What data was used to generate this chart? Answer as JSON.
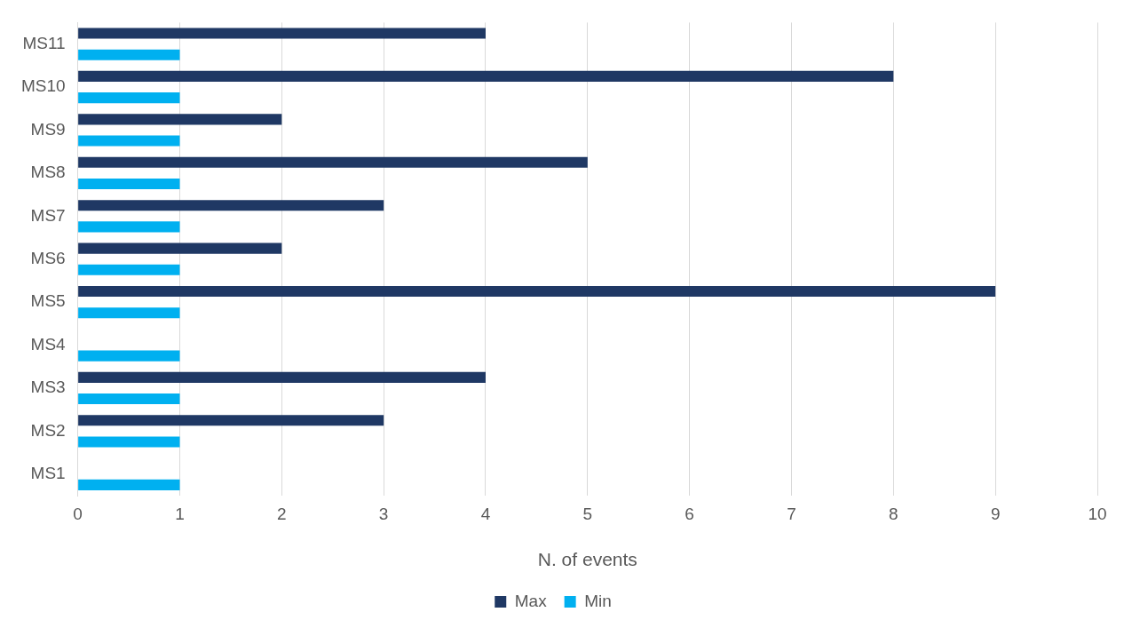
{
  "chart_data": {
    "type": "bar",
    "orientation": "horizontal",
    "xlabel": "N. of events",
    "categories": [
      "MS11",
      "MS10",
      "MS9",
      "MS8",
      "MS7",
      "MS6",
      "MS5",
      "MS4",
      "MS3",
      "MS2",
      "MS1"
    ],
    "series": [
      {
        "name": "Max",
        "color": "#1f3864",
        "values": [
          4,
          8,
          2,
          5,
          3,
          2,
          9,
          null,
          4,
          3,
          null
        ]
      },
      {
        "name": "Min",
        "color": "#00b0f0",
        "values": [
          1,
          1,
          1,
          1,
          1,
          1,
          1,
          1,
          1,
          1,
          1
        ]
      }
    ],
    "xlim": [
      0,
      10
    ],
    "xticks": [
      0,
      1,
      2,
      3,
      4,
      5,
      6,
      7,
      8,
      9,
      10
    ],
    "grid": "x",
    "legend": "bottom"
  }
}
